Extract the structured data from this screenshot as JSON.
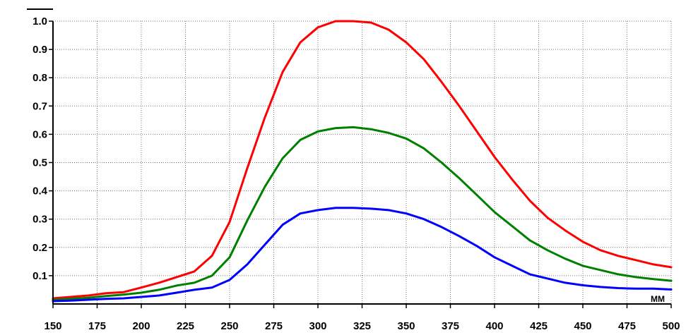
{
  "chart_data": {
    "type": "line",
    "x_unit": "MM",
    "xlim": [
      150,
      500
    ],
    "ylim": [
      0,
      1.0
    ],
    "x_ticks": [
      150,
      175,
      200,
      225,
      250,
      275,
      300,
      325,
      350,
      375,
      400,
      425,
      450,
      475,
      500
    ],
    "x_tick_labels": [
      "150",
      "175",
      "200",
      "225",
      "250",
      "275",
      "300",
      "325",
      "350",
      "375",
      "400",
      "425",
      "450",
      "475",
      "500"
    ],
    "y_ticks": [
      0.1,
      0.2,
      0.3,
      0.4,
      0.5,
      0.6,
      0.7,
      0.8,
      0.9,
      1.0
    ],
    "y_tick_labels": [
      "0.1",
      "0.2",
      "0.3",
      "0.4",
      "0.5",
      "0.6",
      "0.7",
      "0.8",
      "0.9",
      "1.0"
    ],
    "grid": true,
    "series": [
      {
        "color": "#ff0000",
        "x": [
          150,
          160,
          170,
          180,
          190,
          200,
          210,
          220,
          230,
          240,
          250,
          260,
          270,
          280,
          290,
          300,
          310,
          320,
          330,
          340,
          350,
          360,
          370,
          380,
          390,
          400,
          410,
          420,
          430,
          440,
          450,
          460,
          470,
          480,
          490,
          500
        ],
        "y": [
          0.02,
          0.025,
          0.03,
          0.038,
          0.042,
          0.058,
          0.075,
          0.095,
          0.115,
          0.17,
          0.29,
          0.48,
          0.66,
          0.82,
          0.925,
          0.978,
          1.0,
          1.0,
          0.995,
          0.97,
          0.925,
          0.865,
          0.785,
          0.7,
          0.61,
          0.52,
          0.44,
          0.365,
          0.305,
          0.26,
          0.22,
          0.19,
          0.17,
          0.155,
          0.14,
          0.13
        ]
      },
      {
        "color": "#008000",
        "x": [
          150,
          160,
          170,
          180,
          190,
          200,
          210,
          220,
          230,
          240,
          250,
          260,
          270,
          280,
          290,
          300,
          310,
          320,
          330,
          340,
          350,
          360,
          370,
          380,
          390,
          400,
          410,
          420,
          430,
          440,
          450,
          460,
          470,
          480,
          490,
          500
        ],
        "y": [
          0.015,
          0.018,
          0.022,
          0.028,
          0.033,
          0.04,
          0.05,
          0.065,
          0.075,
          0.1,
          0.165,
          0.295,
          0.415,
          0.515,
          0.58,
          0.61,
          0.622,
          0.625,
          0.618,
          0.605,
          0.585,
          0.55,
          0.5,
          0.445,
          0.385,
          0.325,
          0.275,
          0.225,
          0.19,
          0.16,
          0.135,
          0.12,
          0.105,
          0.095,
          0.088,
          0.082
        ]
      },
      {
        "color": "#0000ff",
        "x": [
          150,
          160,
          170,
          180,
          190,
          200,
          210,
          220,
          230,
          240,
          250,
          260,
          270,
          280,
          290,
          300,
          310,
          320,
          330,
          340,
          350,
          360,
          370,
          380,
          390,
          400,
          410,
          420,
          430,
          440,
          450,
          460,
          470,
          480,
          490,
          500
        ],
        "y": [
          0.01,
          0.012,
          0.015,
          0.018,
          0.02,
          0.025,
          0.03,
          0.04,
          0.05,
          0.058,
          0.085,
          0.14,
          0.21,
          0.28,
          0.32,
          0.332,
          0.34,
          0.34,
          0.337,
          0.332,
          0.32,
          0.3,
          0.272,
          0.24,
          0.205,
          0.165,
          0.135,
          0.105,
          0.09,
          0.075,
          0.066,
          0.06,
          0.056,
          0.054,
          0.054,
          0.051
        ]
      }
    ]
  },
  "colors": {
    "axis": "#000000",
    "grid": "#7a7a7a",
    "background": "#ffffff"
  }
}
